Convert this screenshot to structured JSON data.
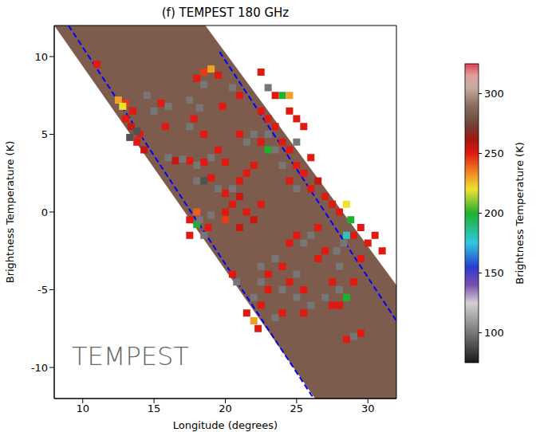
{
  "chart_data": {
    "type": "heatmap",
    "title": "(f) TEMPEST 180 GHz",
    "x_label": "Longitude (degrees)",
    "y_label": "Brightness Temperature (K)",
    "xlim": [
      8,
      32
    ],
    "ylim": [
      -12,
      12
    ],
    "xticks": [
      10,
      15,
      20,
      25,
      30
    ],
    "yticks": [
      -10,
      -5,
      0,
      5,
      10
    ],
    "annotation": "TEMPEST",
    "swath": {
      "x": [
        8,
        18.6,
        26.3,
        32
      ],
      "upper": [
        12,
        12,
        2.4,
        -4.7
      ],
      "lower": [
        12,
        -1.9,
        -12,
        -12
      ],
      "value": 283
    },
    "lines": [
      {
        "x": [
          9,
          26.2
        ],
        "y": [
          12,
          -12
        ],
        "color": "#0000ff",
        "line_style": "dashed"
      },
      {
        "x": [
          19.6,
          32
        ],
        "y": [
          10.3,
          -7
        ],
        "color": "#0000ff",
        "line_style": "dashed"
      }
    ],
    "cells": [
      [
        11,
        9.5,
        250
      ],
      [
        12.5,
        7.2,
        230
      ],
      [
        13,
        7,
        245
      ],
      [
        13.5,
        6.5,
        250
      ],
      [
        13,
        6,
        250
      ],
      [
        12.8,
        6.8,
        220
      ],
      [
        13.4,
        5.5,
        255
      ],
      [
        14,
        5,
        250
      ],
      [
        13.8,
        4.5,
        250
      ],
      [
        14.3,
        4,
        255
      ],
      [
        13.3,
        4.8,
        90
      ],
      [
        13.8,
        5.2,
        90
      ],
      [
        14.5,
        7.5,
        100
      ],
      [
        15,
        6.5,
        100
      ],
      [
        15.5,
        7,
        250
      ],
      [
        16,
        6.8,
        100
      ],
      [
        15.8,
        5.5,
        250
      ],
      [
        18,
        8.6,
        250
      ],
      [
        18.5,
        9,
        245
      ],
      [
        19,
        9.2,
        230
      ],
      [
        18.5,
        8.2,
        100
      ],
      [
        19.5,
        8.8,
        250
      ],
      [
        17.5,
        7.2,
        100
      ],
      [
        18.2,
        6.7,
        100
      ],
      [
        17.8,
        6,
        250
      ],
      [
        17.5,
        5.5,
        100
      ],
      [
        18.5,
        5,
        250
      ],
      [
        16,
        3.5,
        100
      ],
      [
        16.5,
        3.3,
        255
      ],
      [
        17,
        3.4,
        100
      ],
      [
        17.5,
        3.3,
        250
      ],
      [
        18,
        3,
        100
      ],
      [
        18.5,
        3.2,
        250
      ],
      [
        19,
        3.5,
        100
      ],
      [
        19.5,
        4,
        250
      ],
      [
        20,
        3.2,
        250
      ],
      [
        18,
        2,
        100
      ],
      [
        18.5,
        2,
        90
      ],
      [
        19,
        2.2,
        250
      ],
      [
        19.5,
        1.5,
        100
      ],
      [
        20,
        1.2,
        250
      ],
      [
        20.5,
        1.5,
        100
      ],
      [
        21,
        2,
        250
      ],
      [
        21,
        5,
        250
      ],
      [
        21.5,
        4.5,
        100
      ],
      [
        22,
        5,
        100
      ],
      [
        22.5,
        4.5,
        250
      ],
      [
        23,
        5,
        100
      ],
      [
        23.5,
        5.5,
        250
      ],
      [
        23,
        4,
        200
      ],
      [
        23.5,
        4,
        100
      ],
      [
        24,
        4.5,
        250
      ],
      [
        24.5,
        4,
        250
      ],
      [
        23,
        6,
        250
      ],
      [
        22.5,
        6.5,
        250
      ],
      [
        24,
        7.5,
        200
      ],
      [
        23.5,
        7.5,
        250
      ],
      [
        22,
        3,
        250
      ],
      [
        21.5,
        2.5,
        250
      ],
      [
        20,
        0,
        250
      ],
      [
        20.5,
        0.5,
        250
      ],
      [
        21,
        1,
        255
      ],
      [
        21.5,
        0,
        250
      ],
      [
        22,
        -0.5,
        255
      ],
      [
        22.5,
        0.5,
        250
      ],
      [
        21,
        -1,
        255
      ],
      [
        20,
        -0.5,
        245
      ],
      [
        17.5,
        -0.5,
        250
      ],
      [
        18,
        0,
        240
      ],
      [
        18,
        -0.8,
        200
      ],
      [
        18.2,
        -0.5,
        100
      ],
      [
        18.8,
        -1,
        250
      ],
      [
        17.5,
        -1.5,
        250
      ],
      [
        19,
        -0.2,
        100
      ],
      [
        18.5,
        -1.5,
        100
      ],
      [
        26,
        1.5,
        250
      ],
      [
        26.5,
        2,
        255
      ],
      [
        27,
        1,
        250
      ],
      [
        27.5,
        0.5,
        250
      ],
      [
        28,
        0,
        250
      ],
      [
        28.5,
        0.5,
        220
      ],
      [
        28.8,
        -0.5,
        200
      ],
      [
        28.5,
        -1.5,
        180
      ],
      [
        28.3,
        -2,
        100
      ],
      [
        29,
        -1.5,
        250
      ],
      [
        29.5,
        -1,
        250
      ],
      [
        30,
        -2,
        250
      ],
      [
        30.5,
        -1.5,
        250
      ],
      [
        31,
        -2.5,
        250
      ],
      [
        29.5,
        -3,
        250
      ],
      [
        27.8,
        -2.5,
        100
      ],
      [
        28,
        -3.5,
        100
      ],
      [
        27,
        -2.5,
        250
      ],
      [
        26.5,
        -3,
        250
      ],
      [
        26,
        -1.5,
        100
      ],
      [
        26.5,
        -1,
        250
      ],
      [
        24.5,
        2,
        250
      ],
      [
        25,
        1.5,
        100
      ],
      [
        25.5,
        2.5,
        250
      ],
      [
        24,
        3,
        100
      ],
      [
        25,
        3,
        250
      ],
      [
        26,
        3.5,
        250
      ],
      [
        22.5,
        -3.5,
        100
      ],
      [
        23,
        -4,
        250
      ],
      [
        23.5,
        -3,
        100
      ],
      [
        24,
        -3.5,
        250
      ],
      [
        22.5,
        -4.5,
        100
      ],
      [
        23,
        -5,
        250
      ],
      [
        22,
        -5.5,
        100
      ],
      [
        22.5,
        -6,
        250
      ],
      [
        24,
        -5,
        100
      ],
      [
        24.5,
        -4.5,
        250
      ],
      [
        25,
        -5.5,
        100
      ],
      [
        25.5,
        -5,
        250
      ],
      [
        25,
        -4,
        100
      ],
      [
        24,
        -6.5,
        250
      ],
      [
        23.5,
        -6.8,
        100
      ],
      [
        22,
        -7,
        230
      ],
      [
        21.5,
        -6.5,
        250
      ],
      [
        25.5,
        -6.5,
        250
      ],
      [
        26,
        -6,
        100
      ],
      [
        27.5,
        -4.5,
        250
      ],
      [
        28,
        -5,
        100
      ],
      [
        28.5,
        -5.5,
        200
      ],
      [
        28,
        -6,
        250
      ],
      [
        27,
        -5.5,
        100
      ],
      [
        27.5,
        -6,
        250
      ],
      [
        29,
        -4.5,
        250
      ],
      [
        29,
        -8,
        100
      ],
      [
        29.5,
        -7.8,
        250
      ],
      [
        28.5,
        -8.2,
        250
      ],
      [
        25,
        -1.5,
        250
      ],
      [
        25.5,
        -2,
        100
      ],
      [
        24.5,
        -2,
        250
      ],
      [
        22.3,
        -7.5,
        250
      ],
      [
        20.5,
        -4,
        250
      ],
      [
        20.8,
        -4.5,
        100
      ],
      [
        22.5,
        9,
        250
      ],
      [
        23,
        8,
        100
      ],
      [
        24.5,
        7.5,
        230
      ],
      [
        24.5,
        6.5,
        250
      ],
      [
        25,
        6,
        250
      ],
      [
        25.5,
        5.5,
        250
      ],
      [
        25,
        4.5,
        100
      ],
      [
        20.5,
        8,
        100
      ],
      [
        21,
        7.5,
        250
      ],
      [
        19.8,
        6.8,
        250
      ]
    ],
    "colorbar": {
      "label": "Brightness Temperature (K)",
      "range": [
        75,
        325
      ],
      "ticks": [
        100,
        150,
        200,
        250,
        300
      ]
    }
  }
}
